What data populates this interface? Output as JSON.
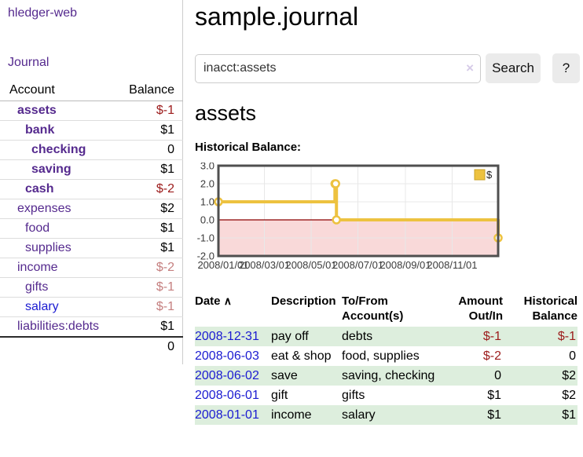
{
  "app": {
    "title": "hledger-web"
  },
  "nav": {
    "journal": "Journal"
  },
  "sidebar": {
    "header": {
      "account": "Account",
      "balance": "Balance"
    },
    "accounts": [
      {
        "name": "assets",
        "balance": "$-1"
      },
      {
        "name": "bank",
        "balance": "$1"
      },
      {
        "name": "checking",
        "balance": "0"
      },
      {
        "name": "saving",
        "balance": "$1"
      },
      {
        "name": "cash",
        "balance": "$-2"
      },
      {
        "name": "expenses",
        "balance": "$2"
      },
      {
        "name": "food",
        "balance": "$1"
      },
      {
        "name": "supplies",
        "balance": "$1"
      },
      {
        "name": "income",
        "balance": "$-2"
      },
      {
        "name": "gifts",
        "balance": "$-1"
      },
      {
        "name": "salary",
        "balance": "$-1"
      },
      {
        "name": "liabilities:debts",
        "balance": "$1"
      }
    ],
    "total": "0"
  },
  "main": {
    "title": "sample.journal",
    "search": {
      "value": "inacct:assets",
      "clear_icon": "×",
      "search_button": "Search",
      "help_button": "?"
    },
    "account_heading": "assets",
    "chart_title": "Historical Balance:"
  },
  "chart_data": {
    "type": "line",
    "title": "Historical Balance:",
    "step": true,
    "series": [
      {
        "name": "$",
        "color": "#edc240",
        "points": [
          [
            "2008-01-01",
            1
          ],
          [
            "2008-06-01",
            2
          ],
          [
            "2008-06-02",
            2
          ],
          [
            "2008-06-03",
            0
          ],
          [
            "2008-12-31",
            -1
          ]
        ]
      }
    ],
    "ylim": [
      -2.0,
      3.0
    ],
    "yticks": [
      "3.0",
      "2.0",
      "1.0",
      "0.0",
      "-1.0",
      "-2.0"
    ],
    "xticks": [
      "2008/01/01",
      "2008/03/01",
      "2008/05/01",
      "2008/07/01",
      "2008/09/01",
      "2008/11/01"
    ],
    "xrange": [
      "2008-01-01",
      "2008-12-31"
    ],
    "legend_position": "top-right",
    "legend_label": "$",
    "grid": true,
    "colors": {
      "line": "#edc240",
      "negative_region": "#f9d9d9",
      "zero_line": "#8b0000",
      "gridline": "#e8e8e8",
      "border": "#4f4f4f"
    }
  },
  "register": {
    "headers": {
      "date": "Date",
      "sort_icon": "∧",
      "description": "Description",
      "accounts": "To/From Account(s)",
      "amount": "Amount Out/In",
      "balance": "Historical Balance"
    },
    "rows": [
      {
        "date": "2008-12-31",
        "description": "pay off",
        "accounts": "debts",
        "amount": "$-1",
        "balance": "$-1"
      },
      {
        "date": "2008-06-03",
        "description": "eat & shop",
        "accounts": "food, supplies",
        "amount": "$-2",
        "balance": "0"
      },
      {
        "date": "2008-06-02",
        "description": "save",
        "accounts": "saving, checking",
        "amount": "0",
        "balance": "$2"
      },
      {
        "date": "2008-06-01",
        "description": "gift",
        "accounts": "gifts",
        "amount": "$1",
        "balance": "$2"
      },
      {
        "date": "2008-01-01",
        "description": "income",
        "accounts": "salary",
        "amount": "$1",
        "balance": "$1"
      }
    ]
  }
}
